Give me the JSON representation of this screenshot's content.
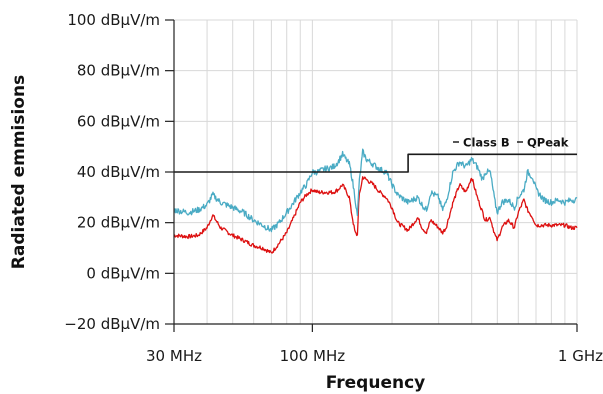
{
  "chart_data": {
    "type": "line",
    "xlabel": "Frequency",
    "ylabel": "Radiated emmisions",
    "x_scale": "log",
    "x_unit": "MHz",
    "xlim": [
      30,
      1000
    ],
    "ylim": [
      -20,
      100
    ],
    "grid": true,
    "x_ticks": [
      {
        "value": 30,
        "label": "30 MHz"
      },
      {
        "value": 100,
        "label": "100 MHz"
      },
      {
        "value": 1000,
        "label": "1 GHz"
      }
    ],
    "y_ticks": [
      {
        "value": 100,
        "label": "100 dBµV/m"
      },
      {
        "value": 80,
        "label": "80 dBµV/m"
      },
      {
        "value": 60,
        "label": "60 dBµV/m"
      },
      {
        "value": 40,
        "label": "40 dBµV/m"
      },
      {
        "value": 20,
        "label": "20 dBµV/m"
      },
      {
        "value": 0,
        "label": "0 dBµV/m"
      },
      {
        "value": -20,
        "label": "−20 dBµV/m"
      }
    ],
    "legend": {
      "entries": [
        "Class B",
        "QPeak"
      ],
      "placement": "top-right"
    },
    "series": [
      {
        "name": "Class B",
        "color": "#1a1a1a",
        "x": [
          30,
          230,
          230,
          1000
        ],
        "y": [
          40,
          40,
          47,
          47
        ]
      },
      {
        "color": "#4aabc4",
        "noise": 1.2,
        "x": [
          30,
          34,
          37,
          40,
          42,
          45,
          50,
          55,
          60,
          65,
          70,
          75,
          80,
          85,
          90,
          95,
          100,
          105,
          110,
          120,
          125,
          130,
          138,
          140,
          145,
          148,
          150,
          155,
          160,
          170,
          180,
          190,
          200,
          210,
          230,
          250,
          260,
          270,
          280,
          300,
          310,
          320,
          340,
          360,
          380,
          400,
          420,
          440,
          450,
          470,
          490,
          500,
          520,
          550,
          580,
          600,
          630,
          650,
          680,
          700,
          750,
          800,
          850,
          900,
          950,
          1000
        ],
        "y": [
          25,
          24,
          25,
          27,
          31,
          28,
          26,
          24,
          21,
          19,
          17,
          20,
          24,
          28,
          32,
          35,
          40,
          40,
          41,
          42,
          44,
          47,
          43,
          40,
          30,
          22,
          35,
          48,
          45,
          43,
          41,
          40,
          35,
          31,
          28,
          30,
          27,
          25,
          32,
          30,
          25,
          28,
          40,
          44,
          42,
          45,
          42,
          37,
          40,
          40,
          28,
          24,
          28,
          29,
          26,
          30,
          33,
          40,
          38,
          33,
          29,
          28,
          29,
          28,
          29,
          29
        ]
      },
      {
        "color": "#dd1111",
        "noise": 0.8,
        "x": [
          30,
          34,
          37,
          40,
          42,
          45,
          50,
          55,
          60,
          65,
          70,
          75,
          80,
          85,
          90,
          95,
          100,
          105,
          110,
          120,
          125,
          130,
          138,
          140,
          145,
          148,
          150,
          155,
          160,
          170,
          180,
          190,
          200,
          210,
          230,
          250,
          260,
          270,
          280,
          300,
          310,
          320,
          340,
          360,
          380,
          400,
          420,
          440,
          450,
          470,
          490,
          500,
          520,
          550,
          580,
          600,
          630,
          650,
          680,
          700,
          750,
          800,
          850,
          900,
          950,
          1000
        ],
        "y": [
          15,
          14.5,
          15,
          18,
          23,
          18,
          15,
          13,
          11,
          10,
          8,
          12,
          16,
          22,
          28,
          31,
          33,
          32,
          32,
          32,
          33,
          35,
          30,
          25,
          16,
          15,
          30,
          38,
          37,
          35,
          32,
          30,
          26,
          20,
          17,
          22,
          18,
          16,
          21,
          18,
          16,
          18,
          28,
          35,
          32,
          38,
          30,
          24,
          21,
          22,
          15,
          13,
          18,
          21,
          18,
          24,
          29,
          25,
          22,
          19,
          19,
          19,
          19,
          19,
          18,
          18
        ]
      }
    ]
  }
}
